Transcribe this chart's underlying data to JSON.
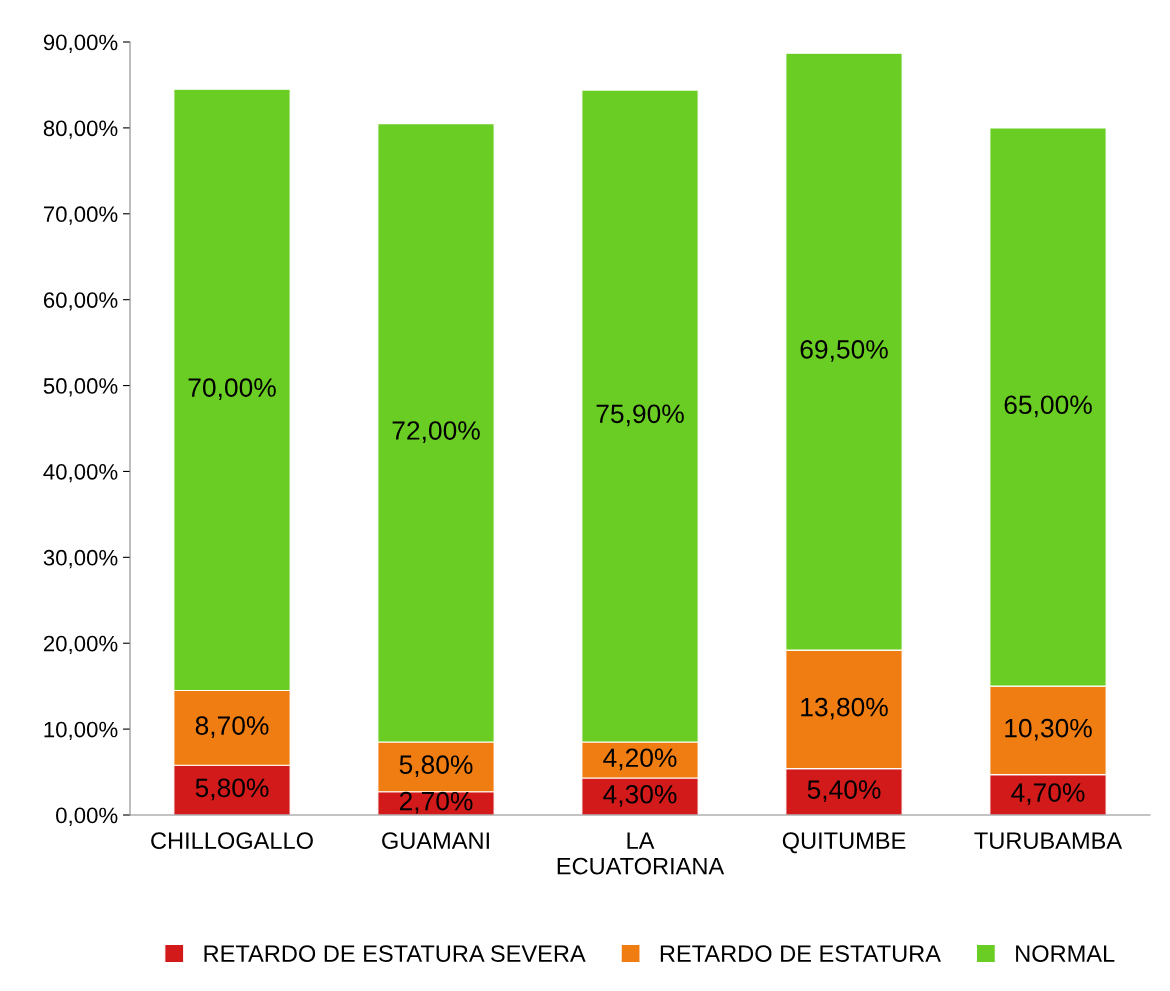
{
  "chart_data": {
    "type": "bar",
    "stacked": true,
    "categories": [
      "CHILLOGALLO",
      "GUAMANI",
      "LA ECUATORIANA",
      "QUITUMBE",
      "TURUBAMBA"
    ],
    "series": [
      {
        "name": "RETARDO DE ESTATURA SEVERA",
        "color": "#d21a1a",
        "values": [
          5.8,
          2.7,
          4.3,
          5.4,
          4.7
        ],
        "value_labels": [
          "5,80%",
          "2,70%",
          "4,30%",
          "5,40%",
          "4,70%"
        ]
      },
      {
        "name": "RETARDO DE ESTATURA",
        "color": "#f07d12",
        "values": [
          8.7,
          5.8,
          4.2,
          13.8,
          10.3
        ],
        "value_labels": [
          "8,70%",
          "5,80%",
          "4,20%",
          "13,80%",
          "10,30%"
        ]
      },
      {
        "name": "NORMAL",
        "color": "#6acd24",
        "values": [
          70.0,
          72.0,
          75.9,
          69.5,
          65.0
        ],
        "value_labels": [
          "70,00%",
          "72,00%",
          "75,90%",
          "69,50%",
          "65,00%"
        ]
      }
    ],
    "ylim": [
      0,
      90
    ],
    "yticks": [
      {
        "value": 0,
        "label": "0,00%"
      },
      {
        "value": 10,
        "label": "10,00%"
      },
      {
        "value": 20,
        "label": "20,00%"
      },
      {
        "value": 30,
        "label": "30,00%"
      },
      {
        "value": 40,
        "label": "40,00%"
      },
      {
        "value": 50,
        "label": "50,00%"
      },
      {
        "value": 60,
        "label": "60,00%"
      },
      {
        "value": 70,
        "label": "70,00%"
      },
      {
        "value": 80,
        "label": "80,00%"
      },
      {
        "value": 90,
        "label": "90,00%"
      }
    ],
    "grid": false,
    "legend": "bottom"
  }
}
